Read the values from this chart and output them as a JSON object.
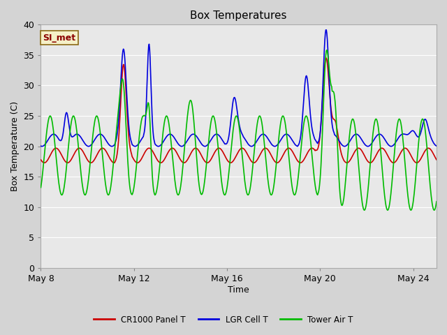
{
  "title": "Box Temperatures",
  "xlabel": "Time",
  "ylabel": "Box Temperature (C)",
  "ylim": [
    0,
    40
  ],
  "yticks": [
    0,
    5,
    10,
    15,
    20,
    25,
    30,
    35,
    40
  ],
  "fig_bg_color": "#d4d4d4",
  "plot_bg_color": "#e8e8e8",
  "annotation_text": "SI_met",
  "annotation_bg": "#f5f0c8",
  "annotation_border": "#8B6914",
  "annotation_text_color": "#8B0000",
  "legend_entries": [
    "CR1000 Panel T",
    "LGR Cell T",
    "Tower Air T"
  ],
  "line_colors": [
    "#cc0000",
    "#0000dd",
    "#00bb00"
  ],
  "line_width": 1.2,
  "xtick_labels": [
    "May 8",
    "May 12",
    "May 16",
    "May 20",
    "May 24"
  ],
  "xtick_positions": [
    0,
    4,
    8,
    12,
    16
  ],
  "xlim": [
    0,
    17
  ],
  "grid_color": "#ffffff",
  "title_fontsize": 11,
  "label_fontsize": 9,
  "tick_fontsize": 9
}
